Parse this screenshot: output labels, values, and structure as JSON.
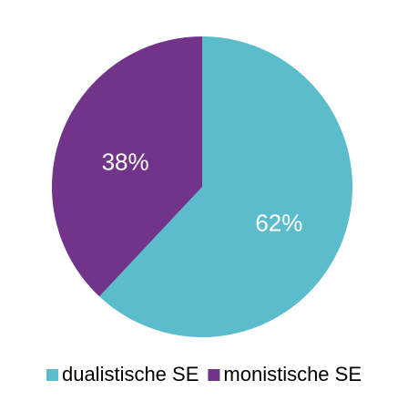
{
  "chart_data": {
    "type": "pie",
    "categories": [
      "dualistische SE",
      "monistische SE"
    ],
    "values": [
      62,
      38
    ],
    "value_labels": [
      "62%",
      "38%"
    ],
    "colors": [
      "#5bbccc",
      "#71348a"
    ],
    "legend": "bottom"
  }
}
